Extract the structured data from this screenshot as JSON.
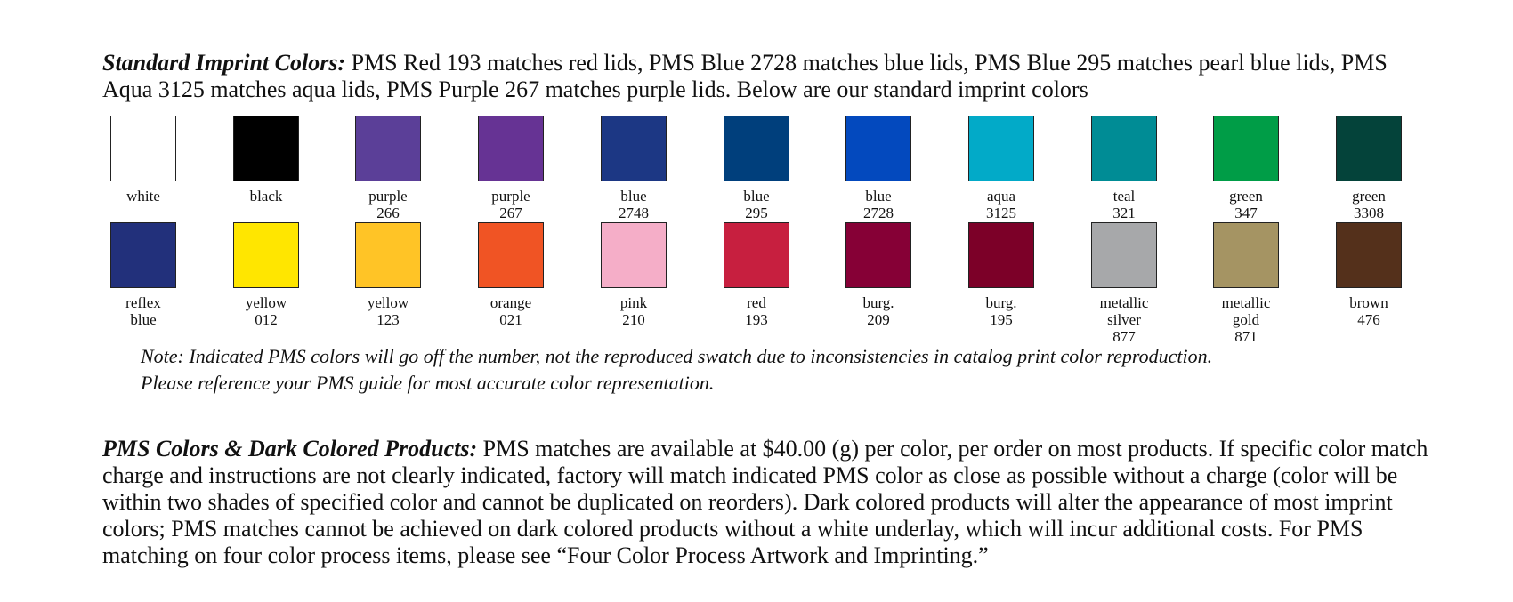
{
  "standard": {
    "lead": "Standard Imprint Colors:",
    "text": " PMS Red 193 matches red lids, PMS Blue 2728 matches blue lids, PMS Blue 295 matches pearl blue lids, PMS Aqua 3125 matches aqua lids, PMS Purple 267 matches purple lids. Below are our standard imprint colors"
  },
  "swatches_row1": [
    {
      "l1": "white",
      "l2": "",
      "l3": "",
      "color": "#ffffff"
    },
    {
      "l1": "black",
      "l2": "",
      "l3": "",
      "color": "#000000"
    },
    {
      "l1": "purple",
      "l2": "266",
      "l3": "",
      "color": "#5b3f98"
    },
    {
      "l1": "purple",
      "l2": "267",
      "l3": "",
      "color": "#663394"
    },
    {
      "l1": "blue",
      "l2": "2748",
      "l3": "",
      "color": "#1c3784"
    },
    {
      "l1": "blue",
      "l2": "295",
      "l3": "",
      "color": "#003f7c"
    },
    {
      "l1": "blue",
      "l2": "2728",
      "l3": "",
      "color": "#0349be"
    },
    {
      "l1": "aqua",
      "l2": "3125",
      "l3": "",
      "color": "#02aac8"
    },
    {
      "l1": "teal",
      "l2": "321",
      "l3": "",
      "color": "#008c95"
    },
    {
      "l1": "green",
      "l2": "347",
      "l3": "",
      "color": "#009d47"
    },
    {
      "l1": "green",
      "l2": "3308",
      "l3": "",
      "color": "#04433a"
    }
  ],
  "swatches_row2": [
    {
      "l1": "reflex",
      "l2": "blue",
      "l3": "",
      "color": "#22307b"
    },
    {
      "l1": "yellow",
      "l2": "012",
      "l3": "",
      "color": "#ffe600"
    },
    {
      "l1": "yellow",
      "l2": "123",
      "l3": "",
      "color": "#ffc426"
    },
    {
      "l1": "orange",
      "l2": "021",
      "l3": "",
      "color": "#f05424"
    },
    {
      "l1": "pink",
      "l2": "210",
      "l3": "",
      "color": "#f5aec8"
    },
    {
      "l1": "red",
      "l2": "193",
      "l3": "",
      "color": "#c71f3f"
    },
    {
      "l1": "burg.",
      "l2": "209",
      "l3": "",
      "color": "#860036"
    },
    {
      "l1": "burg.",
      "l2": "195",
      "l3": "",
      "color": "#7c0028"
    },
    {
      "l1": "metallic",
      "l2": "silver",
      "l3": "877",
      "color": "#a7a8aa"
    },
    {
      "l1": "metallic",
      "l2": "gold",
      "l3": "871",
      "color": "#a59463"
    },
    {
      "l1": "brown",
      "l2": "476",
      "l3": "",
      "color": "#54301b"
    }
  ],
  "note": {
    "line1": "Note: Indicated PMS colors will go off the number, not the reproduced swatch due to inconsistencies in catalog print color reproduction.",
    "line2": "Please reference your PMS guide for most accurate color representation."
  },
  "pms": {
    "lead": "PMS Colors & Dark Colored Products:",
    "text": " PMS matches are available at $40.00 (g) per color, per order on most products. If specific color match charge and instructions are not clearly indicated, factory will match indicated PMS color as close as possible without a charge (color will be within two shades of specified color and cannot be duplicated on reorders). Dark colored products will alter the appearance of most imprint colors; PMS matches cannot be achieved on dark colored products without a white underlay, which will incur additional costs. For PMS matching on four color process items, please see “Four Color Process Artwork and Imprinting.”"
  }
}
